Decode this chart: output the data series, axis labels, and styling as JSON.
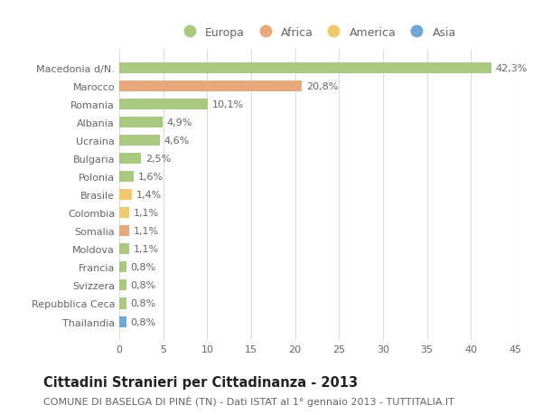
{
  "countries": [
    "Macedonia d/N.",
    "Marocco",
    "Romania",
    "Albania",
    "Ucraina",
    "Bulgaria",
    "Polonia",
    "Brasile",
    "Colombia",
    "Somalia",
    "Moldova",
    "Francia",
    "Svizzera",
    "Repubblica Ceca",
    "Thailandia"
  ],
  "values": [
    42.3,
    20.8,
    10.1,
    4.9,
    4.6,
    2.5,
    1.6,
    1.4,
    1.1,
    1.1,
    1.1,
    0.8,
    0.8,
    0.8,
    0.8
  ],
  "labels": [
    "42,3%",
    "20,8%",
    "10,1%",
    "4,9%",
    "4,6%",
    "2,5%",
    "1,6%",
    "1,4%",
    "1,1%",
    "1,1%",
    "1,1%",
    "0,8%",
    "0,8%",
    "0,8%",
    "0,8%"
  ],
  "continents": [
    "Europa",
    "Africa",
    "Europa",
    "Europa",
    "Europa",
    "Europa",
    "Europa",
    "America",
    "America",
    "Africa",
    "Europa",
    "Europa",
    "Europa",
    "Europa",
    "Asia"
  ],
  "continent_colors": {
    "Europa": "#a8c97f",
    "Africa": "#e8a87c",
    "America": "#f0c96e",
    "Asia": "#6fa8d4"
  },
  "legend_order": [
    "Europa",
    "Africa",
    "America",
    "Asia"
  ],
  "title": "Cittadini Stranieri per Cittadinanza - 2013",
  "subtitle": "COMUNE DI BASELGA DI PINÈ (TN) - Dati ISTAT al 1° gennaio 2013 - TUTTITALIA.IT",
  "xlim": [
    0,
    45
  ],
  "xticks": [
    0,
    5,
    10,
    15,
    20,
    25,
    30,
    35,
    40,
    45
  ],
  "background_color": "#ffffff",
  "grid_color": "#dddddd",
  "bar_height": 0.6,
  "label_fontsize": 8,
  "tick_fontsize": 8,
  "title_fontsize": 10.5,
  "subtitle_fontsize": 8
}
